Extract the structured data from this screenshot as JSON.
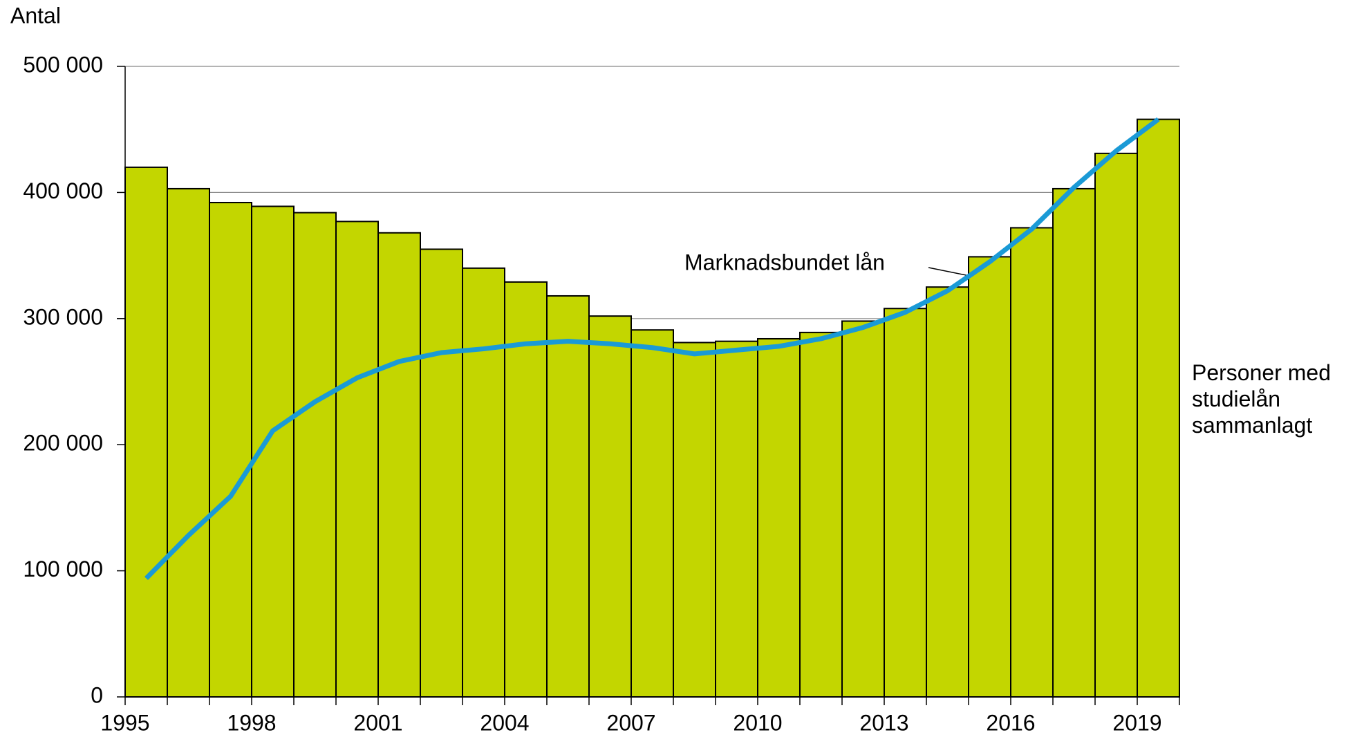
{
  "chart_data": {
    "type": "bar-line",
    "y_label": "Antal",
    "categories": [
      "1995",
      null,
      null,
      "1998",
      null,
      null,
      "2001",
      null,
      null,
      "2004",
      null,
      null,
      "2007",
      null,
      null,
      "2010",
      null,
      null,
      "2013",
      null,
      null,
      "2016",
      null,
      null,
      "2019"
    ],
    "series": [
      {
        "name": "Personer med studielån sammanlagt",
        "type": "bar",
        "color": "#c3d600",
        "values": [
          420000,
          403000,
          392000,
          389000,
          384000,
          377000,
          368000,
          355000,
          340000,
          329000,
          318000,
          302000,
          291000,
          281000,
          282000,
          284000,
          289000,
          298000,
          308000,
          325000,
          349000,
          372000,
          403000,
          431000,
          458000
        ]
      },
      {
        "name": "Marknadsbundet lån",
        "type": "line",
        "color": "#1a9ad6",
        "values": [
          94000,
          128000,
          159000,
          211000,
          234000,
          253000,
          266000,
          273000,
          276000,
          280000,
          282000,
          280000,
          277000,
          272000,
          275000,
          278000,
          284000,
          293000,
          305000,
          322000,
          345000,
          371000,
          404000,
          433000,
          458000
        ]
      }
    ],
    "ylim": [
      0,
      500000
    ],
    "yticks": [
      0,
      {
        "value": 100000,
        "label": "100 000"
      },
      {
        "value": 200000,
        "label": "200 000"
      },
      {
        "value": 300000,
        "label": "300 000"
      },
      {
        "value": 400000,
        "label": "400 000"
      },
      {
        "value": 500000,
        "label": "500 000"
      }
    ],
    "grid": true
  }
}
